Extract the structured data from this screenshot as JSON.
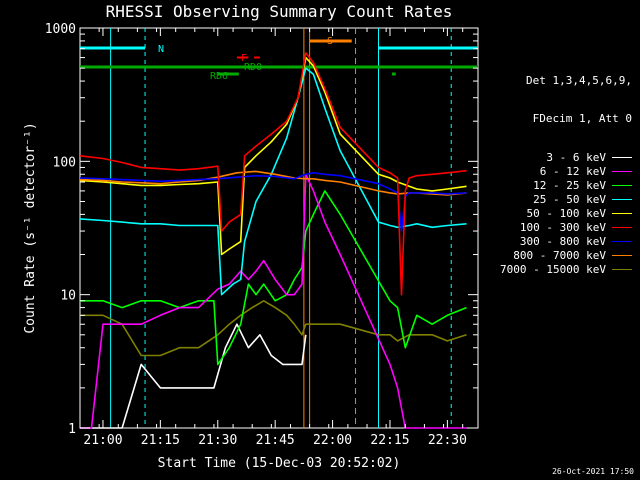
{
  "chart_data": {
    "type": "line",
    "title": "RHESSI Observing Summary Count Rates",
    "xlabel": "Start Time (15-Dec-03 20:52:02)",
    "ylabel": "Count Rate (s⁻¹ detector⁻¹)",
    "yscale": "log",
    "ylim": [
      1,
      1000
    ],
    "xlim": [
      -6,
      98
    ],
    "x_units": "minutes from 21:00",
    "x_ticks": [
      {
        "x": 0,
        "label": "21:00"
      },
      {
        "x": 15,
        "label": "21:15"
      },
      {
        "x": 30,
        "label": "21:30"
      },
      {
        "x": 45,
        "label": "21:45"
      },
      {
        "x": 60,
        "label": "22:00"
      },
      {
        "x": 75,
        "label": "22:15"
      },
      {
        "x": 90,
        "label": "22:30"
      }
    ],
    "y_ticks": [
      {
        "y": 1,
        "label": "1"
      },
      {
        "y": 10,
        "label": "10"
      },
      {
        "y": 100,
        "label": "100"
      },
      {
        "y": 1000,
        "label": "1000"
      }
    ],
    "legend_header": [
      "Det 1,3,4,5,6,9,",
      "FDecim 1, Att 0"
    ],
    "legend_position": "right",
    "series": [
      {
        "name": "3 - 6 keV",
        "color": "#ffffff",
        "x": [
          -6,
          5,
          10,
          15,
          20,
          25,
          29,
          32,
          35,
          38,
          41,
          44,
          47,
          50,
          52,
          53
        ],
        "y": [
          1,
          1,
          3,
          2,
          2,
          2,
          2,
          4,
          6,
          4,
          5,
          3.5,
          3,
          3,
          3,
          5
        ]
      },
      {
        "name": "6 - 12 keV",
        "color": "#ff00ff",
        "x": [
          -6,
          -3,
          0,
          5,
          10,
          15,
          20,
          25,
          30,
          33,
          36,
          38,
          40,
          42,
          45,
          48,
          50,
          52,
          53,
          55,
          58,
          62,
          75,
          77,
          79,
          82,
          86,
          90,
          95
        ],
        "y": [
          1,
          1,
          6,
          6,
          6,
          7,
          8,
          8,
          11,
          12,
          15,
          13,
          15,
          18,
          13,
          10,
          10,
          12,
          80,
          60,
          35,
          20,
          3,
          2,
          1,
          1,
          1,
          1,
          1
        ]
      },
      {
        "name": "12 - 25 keV",
        "color": "#00ff00",
        "x": [
          -6,
          0,
          5,
          10,
          15,
          20,
          25,
          29,
          30,
          33,
          36,
          38,
          40,
          42,
          45,
          48,
          50,
          52,
          53,
          55,
          58,
          62,
          75,
          77,
          79,
          82,
          86,
          90,
          95
        ],
        "y": [
          9,
          9,
          8,
          9,
          9,
          8,
          9,
          9,
          3,
          4,
          6,
          12,
          10,
          12,
          9,
          10,
          13,
          16,
          30,
          40,
          60,
          40,
          9,
          8,
          4,
          7,
          6,
          7,
          8
        ]
      },
      {
        "name": "25 - 50 keV",
        "color": "#00ffff",
        "x": [
          -6,
          0,
          5,
          10,
          15,
          20,
          25,
          30,
          31,
          34,
          36,
          37,
          40,
          44,
          48,
          51,
          53,
          55,
          58,
          62,
          72,
          75,
          77,
          80,
          82,
          86,
          90,
          95
        ],
        "y": [
          37,
          36,
          35,
          34,
          34,
          33,
          33,
          33,
          10,
          12,
          13,
          25,
          50,
          80,
          150,
          300,
          500,
          450,
          250,
          120,
          35,
          33,
          32,
          33,
          34,
          32,
          33,
          34
        ]
      },
      {
        "name": "50 - 100 keV",
        "color": "#ffff00",
        "x": [
          -6,
          0,
          5,
          10,
          15,
          20,
          25,
          30,
          31,
          33,
          36,
          37,
          40,
          44,
          48,
          51,
          53,
          55,
          58,
          62,
          72,
          75,
          77,
          80,
          82,
          86,
          90,
          95
        ],
        "y": [
          72,
          70,
          68,
          66,
          66,
          67,
          68,
          70,
          20,
          22,
          25,
          90,
          110,
          140,
          190,
          300,
          600,
          520,
          330,
          160,
          80,
          75,
          70,
          65,
          62,
          60,
          62,
          65
        ]
      },
      {
        "name": "100 - 300 keV",
        "color": "#ff0000",
        "x": [
          -6,
          0,
          5,
          10,
          15,
          20,
          25,
          30,
          31,
          33,
          36,
          37,
          40,
          44,
          48,
          51,
          53,
          55,
          58,
          62,
          72,
          75,
          77,
          78,
          79,
          80,
          82,
          86,
          90,
          95
        ],
        "y": [
          110,
          105,
          98,
          90,
          88,
          86,
          88,
          92,
          30,
          35,
          40,
          110,
          130,
          160,
          200,
          300,
          650,
          550,
          350,
          180,
          90,
          82,
          75,
          10,
          60,
          75,
          78,
          80,
          82,
          85
        ]
      },
      {
        "name": "300 - 800 keV",
        "color": "#0000ff",
        "x": [
          -6,
          0,
          5,
          10,
          15,
          20,
          25,
          30,
          35,
          40,
          45,
          50,
          53,
          55,
          58,
          62,
          72,
          75,
          77,
          78,
          79,
          80,
          82,
          86,
          90,
          95
        ],
        "y": [
          75,
          74,
          73,
          72,
          71,
          72,
          73,
          74,
          76,
          78,
          77,
          74,
          80,
          82,
          80,
          78,
          68,
          62,
          58,
          30,
          55,
          58,
          58,
          58,
          57,
          58
        ]
      },
      {
        "name": "800 - 7000 keV",
        "color": "#ff8000",
        "x": [
          -6,
          0,
          5,
          10,
          15,
          20,
          25,
          30,
          35,
          40,
          45,
          50,
          53,
          55,
          58,
          62,
          72,
          75,
          77,
          80,
          82,
          86,
          90,
          95
        ],
        "y": [
          73,
          72,
          70,
          69,
          68,
          70,
          72,
          76,
          82,
          84,
          80,
          75,
          74,
          74,
          72,
          70,
          60,
          58,
          57,
          58,
          58,
          57,
          56,
          58
        ]
      },
      {
        "name": "7000 - 15000 keV",
        "color": "#808000",
        "x": [
          -6,
          0,
          5,
          10,
          15,
          20,
          25,
          30,
          33,
          36,
          39,
          42,
          45,
          48,
          50,
          52,
          53,
          55,
          58,
          62,
          72,
          75,
          77,
          80,
          82,
          86,
          90,
          95
        ],
        "y": [
          7,
          7,
          6,
          3.5,
          3.5,
          4,
          4,
          5,
          6,
          7,
          8,
          9,
          8,
          7,
          6,
          5,
          6,
          6,
          6,
          6,
          5,
          5,
          4.5,
          5,
          5,
          5,
          4.5,
          5
        ]
      }
    ],
    "annotations": [
      {
        "text": "N",
        "color": "#00ffff"
      },
      {
        "text": "F",
        "color": "#ff0000"
      },
      {
        "text": "RD0",
        "color": "#00aa00"
      },
      {
        "text": "RD6",
        "color": "#00aa00"
      },
      {
        "text": "S",
        "color": "#ff8000"
      }
    ]
  },
  "footer": {
    "date": "26-Oct-2021 17:50"
  }
}
